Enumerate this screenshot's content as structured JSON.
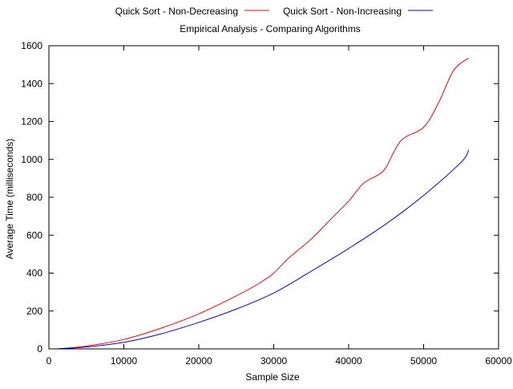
{
  "chart_data": {
    "type": "line",
    "title": "Empirical Analysis - Comparing Algorithms",
    "xlabel": "Sample Size",
    "ylabel": "Average Time (milliseconds)",
    "xlim": [
      0,
      60000
    ],
    "ylim": [
      0,
      1600
    ],
    "xticks": [
      0,
      10000,
      20000,
      30000,
      40000,
      50000,
      60000
    ],
    "yticks": [
      0,
      200,
      400,
      600,
      800,
      1000,
      1200,
      1400,
      1600
    ],
    "grid": false,
    "legend_position": "top-center",
    "series": [
      {
        "name": "Quick Sort - Non-Decreasing",
        "color": "#ff0000",
        "x": [
          1000,
          5000,
          10000,
          15000,
          20000,
          25000,
          28000,
          30000,
          32000,
          35000,
          38000,
          40000,
          42000,
          44000,
          45000,
          47000,
          50000,
          52000,
          54000,
          56000
        ],
        "y": [
          0,
          15,
          50,
          110,
          185,
          280,
          345,
          400,
          480,
          580,
          700,
          780,
          875,
          920,
          960,
          1100,
          1170,
          1300,
          1470,
          1535
        ]
      },
      {
        "name": "Quick Sort - Non-Increasing",
        "color": "#0000ff",
        "x": [
          1000,
          5000,
          10000,
          15000,
          20000,
          25000,
          30000,
          35000,
          40000,
          45000,
          50000,
          55000,
          56000
        ],
        "y": [
          0,
          10,
          35,
          80,
          140,
          210,
          295,
          410,
          530,
          660,
          810,
          985,
          1050
        ]
      }
    ]
  }
}
